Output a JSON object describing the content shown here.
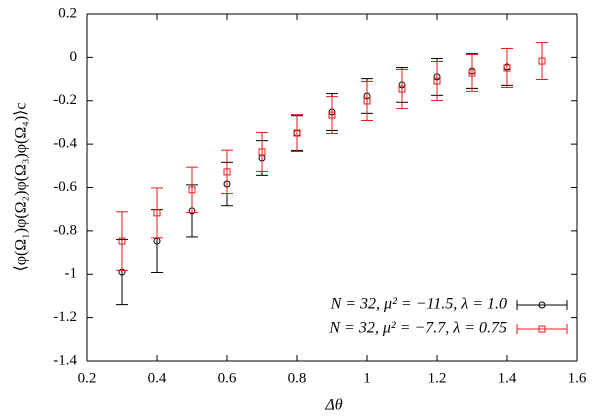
{
  "chart_data": {
    "type": "errorbar",
    "x_label": "Δθ",
    "y_label": "⟨φ(Ω₁)φ(Ω₂)φ(Ω₃)φ(Ω₄)⟩c",
    "xlim": [
      0.2,
      1.6
    ],
    "xticks": [
      0.2,
      0.4,
      0.6,
      0.8,
      1,
      1.2,
      1.4,
      1.6
    ],
    "ylim": [
      -1.4,
      0.2
    ],
    "yticks": [
      -1.4,
      -1.2,
      -1,
      -0.8,
      -0.6,
      -0.4,
      -0.2,
      0,
      0.2
    ],
    "legend": "lower right",
    "series": [
      {
        "name": "N = 32, μ² = −11.5, λ = 1.0",
        "color": "#000000",
        "marker": "circle",
        "x": [
          0.3,
          0.4,
          0.5,
          0.6,
          0.7,
          0.8,
          0.9,
          1.0,
          1.1,
          1.2,
          1.3,
          1.4
        ],
        "values": [
          -0.99,
          -0.847,
          -0.708,
          -0.584,
          -0.464,
          -0.349,
          -0.252,
          -0.178,
          -0.127,
          -0.09,
          -0.063,
          -0.044
        ],
        "errors": [
          0.15,
          0.145,
          0.12,
          0.1,
          0.08,
          0.08,
          0.085,
          0.08,
          0.08,
          0.085,
          0.08,
          0.085
        ]
      },
      {
        "name": "N = 32, μ² = −7.7, λ = 0.75",
        "color": "#e41a1c",
        "marker": "square",
        "x": [
          0.3,
          0.4,
          0.5,
          0.6,
          0.7,
          0.8,
          0.9,
          1.0,
          1.1,
          1.2,
          1.3,
          1.4,
          1.5
        ],
        "values": [
          -0.847,
          -0.717,
          -0.611,
          -0.528,
          -0.436,
          -0.349,
          -0.266,
          -0.201,
          -0.146,
          -0.109,
          -0.072,
          -0.049,
          -0.017
        ],
        "errors": [
          0.135,
          0.115,
          0.105,
          0.1,
          0.09,
          0.085,
          0.085,
          0.09,
          0.09,
          0.09,
          0.085,
          0.09,
          0.085
        ]
      }
    ]
  }
}
